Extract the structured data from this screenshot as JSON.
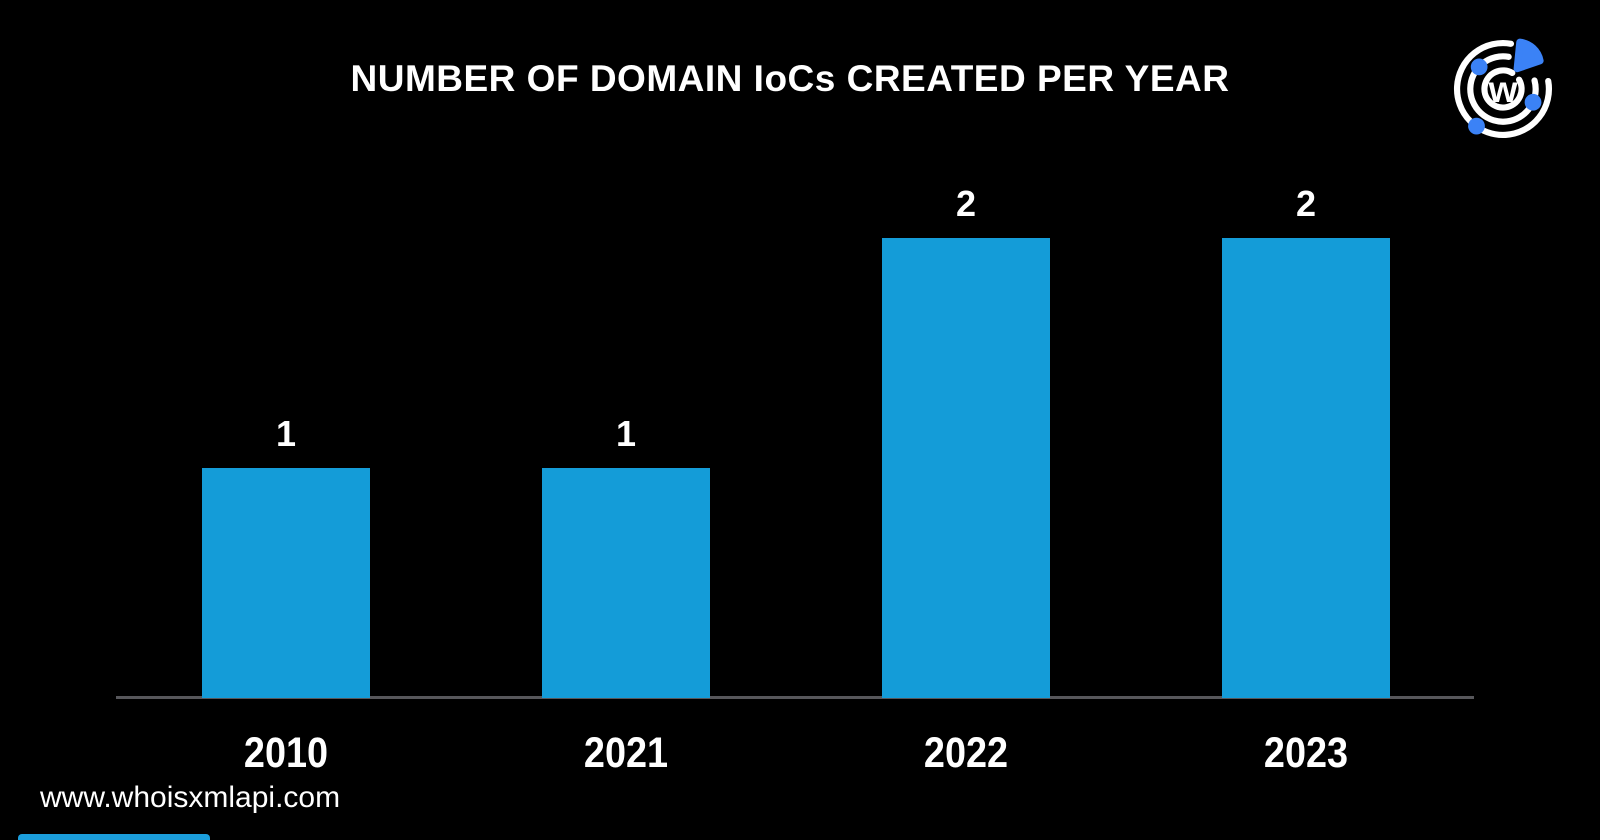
{
  "page": {
    "title": "NUMBER OF DOMAIN IoCs CREATED PER YEAR",
    "footer_url": "www.whoisxmlapi.com",
    "logo_letter": "w",
    "background_color": "#000000"
  },
  "colors": {
    "bar_blue": "#149CD8",
    "logo_blue": "#3B82F6",
    "axis_gray": "#57575B",
    "text_white": "#FFFFFF"
  },
  "chart_data": {
    "type": "bar",
    "title": "NUMBER OF DOMAIN IoCs CREATED PER YEAR",
    "categories": [
      "2010",
      "2021",
      "2022",
      "2023"
    ],
    "values": [
      1,
      1,
      2,
      2
    ],
    "xlabel": "",
    "ylabel": "",
    "ylim": [
      0,
      2
    ],
    "grid": false,
    "legend": false,
    "value_labels_shown": true,
    "bar_color": "#149CD8",
    "background": "#000000"
  }
}
